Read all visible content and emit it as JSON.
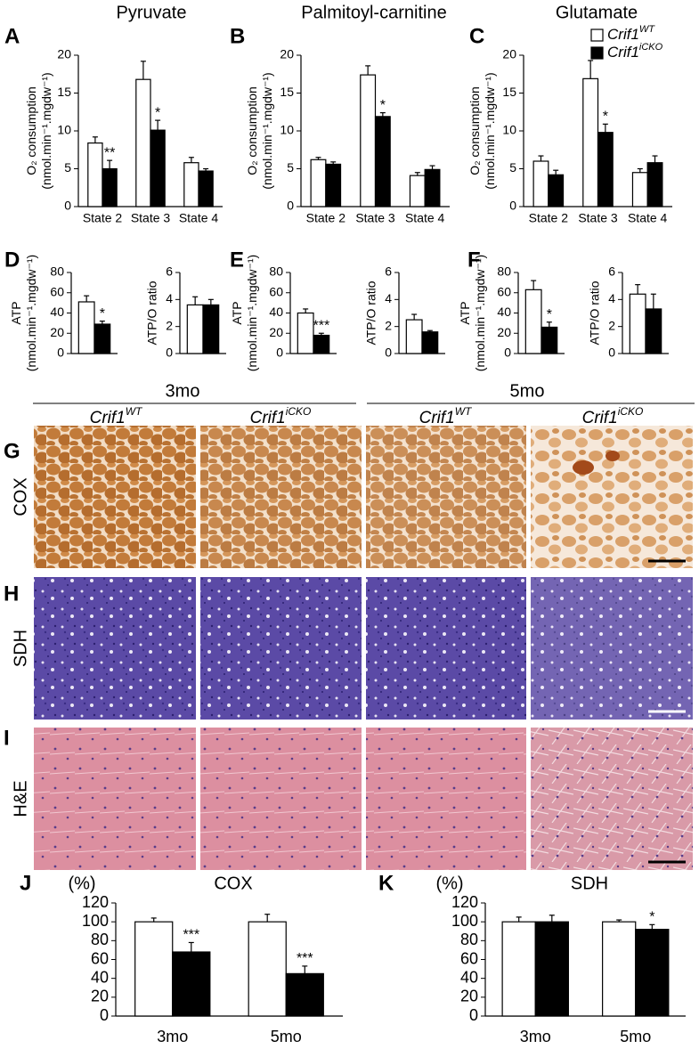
{
  "chart_data": [
    {
      "type": "bar",
      "panel": "A",
      "title": "Pyruvate",
      "ylabel": [
        "O₂ consumption",
        "(nmol.min⁻¹.mgdw⁻¹)"
      ],
      "categories": [
        "State 2",
        "State 3",
        "State 4"
      ],
      "ylim": [
        0,
        20
      ],
      "yticks": [
        0,
        5,
        10,
        15,
        20
      ],
      "series": [
        {
          "color": "#ffffff",
          "values": [
            8.4,
            16.8,
            5.8
          ],
          "errors": [
            0.8,
            2.4,
            0.7
          ]
        },
        {
          "color": "#000000",
          "values": [
            5.0,
            10.1,
            4.7
          ],
          "errors": [
            1.1,
            1.3,
            0.3
          ],
          "significance": [
            "**",
            "*",
            null
          ]
        }
      ]
    },
    {
      "type": "bar",
      "panel": "B",
      "title": "Palmitoyl-carnitine",
      "ylabel": [
        "O₂ consumption",
        "(nmol.min⁻¹.mgdw⁻¹)"
      ],
      "categories": [
        "State 2",
        "State 3",
        "State 4"
      ],
      "ylim": [
        0,
        20
      ],
      "yticks": [
        0,
        5,
        10,
        15,
        20
      ],
      "series": [
        {
          "color": "#ffffff",
          "values": [
            6.2,
            17.4,
            4.1
          ],
          "errors": [
            0.3,
            1.2,
            0.4
          ]
        },
        {
          "color": "#000000",
          "values": [
            5.6,
            11.9,
            4.9
          ],
          "errors": [
            0.3,
            0.5,
            0.5
          ],
          "significance": [
            null,
            "*",
            null
          ]
        }
      ]
    },
    {
      "type": "bar",
      "panel": "C",
      "title": "Glutamate",
      "ylabel": [
        "O₂ consumption",
        "(nmol.min⁻¹.mgdw⁻¹)"
      ],
      "categories": [
        "State 2",
        "State 3",
        "State 4"
      ],
      "ylim": [
        0,
        20
      ],
      "yticks": [
        0,
        5,
        10,
        15,
        20
      ],
      "series": [
        {
          "name": "Crif1",
          "name_sup": "WT",
          "color": "#ffffff",
          "values": [
            6.0,
            16.9,
            4.5
          ],
          "errors": [
            0.7,
            2.4,
            0.5
          ]
        },
        {
          "name": "Crif1",
          "name_sup": "iCKO",
          "color": "#000000",
          "values": [
            4.2,
            9.8,
            5.8
          ],
          "errors": [
            0.6,
            1.1,
            0.9
          ],
          "significance": [
            null,
            "*",
            null
          ]
        }
      ]
    },
    {
      "type": "bar",
      "panel": "D",
      "ylabel": [
        "ATP",
        "(nmol.min⁻¹.mgdw⁻¹)"
      ],
      "categories": [
        null
      ],
      "ylim": [
        0,
        80
      ],
      "yticks": [
        0,
        20,
        40,
        60,
        80
      ],
      "series": [
        {
          "color": "#ffffff",
          "values": [
            51
          ],
          "errors": [
            6
          ]
        },
        {
          "color": "#000000",
          "values": [
            29
          ],
          "errors": [
            3
          ],
          "significance": [
            "*"
          ]
        }
      ]
    },
    {
      "type": "bar",
      "ylabel": [
        "ATP/O ratio"
      ],
      "categories": [
        null
      ],
      "ylim": [
        0,
        6
      ],
      "yticks": [
        0,
        2,
        4,
        6
      ],
      "series": [
        {
          "color": "#ffffff",
          "values": [
            3.6
          ],
          "errors": [
            0.6
          ]
        },
        {
          "color": "#000000",
          "values": [
            3.6
          ],
          "errors": [
            0.4
          ]
        }
      ]
    },
    {
      "type": "bar",
      "panel": "E",
      "ylabel": [
        "ATP",
        "(nmol.min⁻¹.mgdw⁻¹)"
      ],
      "categories": [
        null
      ],
      "ylim": [
        0,
        80
      ],
      "yticks": [
        0,
        20,
        40,
        60,
        80
      ],
      "series": [
        {
          "color": "#ffffff",
          "values": [
            40
          ],
          "errors": [
            4
          ]
        },
        {
          "color": "#000000",
          "values": [
            18
          ],
          "errors": [
            2
          ],
          "significance": [
            "***"
          ]
        }
      ]
    },
    {
      "type": "bar",
      "ylabel": [
        "ATP/O ratio"
      ],
      "categories": [
        null
      ],
      "ylim": [
        0,
        6
      ],
      "yticks": [
        0,
        2,
        4,
        6
      ],
      "series": [
        {
          "color": "#ffffff",
          "values": [
            2.5
          ],
          "errors": [
            0.4
          ]
        },
        {
          "color": "#000000",
          "values": [
            1.6
          ],
          "errors": [
            0.1
          ]
        }
      ]
    },
    {
      "type": "bar",
      "panel": "F",
      "ylabel": [
        "ATP",
        "(nmol.min⁻¹.mgdw⁻¹)"
      ],
      "categories": [
        null
      ],
      "ylim": [
        0,
        80
      ],
      "yticks": [
        0,
        20,
        40,
        60,
        80
      ],
      "series": [
        {
          "color": "#ffffff",
          "values": [
            63
          ],
          "errors": [
            9
          ]
        },
        {
          "color": "#000000",
          "values": [
            26
          ],
          "errors": [
            5
          ],
          "significance": [
            "*"
          ]
        }
      ]
    },
    {
      "type": "bar",
      "ylabel": [
        "ATP/O ratio"
      ],
      "categories": [
        null
      ],
      "ylim": [
        0,
        6
      ],
      "yticks": [
        0,
        2,
        4,
        6
      ],
      "series": [
        {
          "color": "#ffffff",
          "values": [
            4.4
          ],
          "errors": [
            0.7
          ]
        },
        {
          "color": "#000000",
          "values": [
            3.3
          ],
          "errors": [
            1.1
          ]
        }
      ]
    },
    {
      "type": "bar",
      "panel": "J",
      "title": "COX",
      "ylabel": "(%)",
      "categories": [
        "3mo",
        "5mo"
      ],
      "ylim": [
        0,
        120
      ],
      "yticks": [
        0,
        20,
        40,
        60,
        80,
        100,
        120
      ],
      "series": [
        {
          "color": "#ffffff",
          "values": [
            100,
            100
          ],
          "errors": [
            4,
            8
          ]
        },
        {
          "color": "#000000",
          "values": [
            68,
            45
          ],
          "errors": [
            10,
            8
          ],
          "significance": [
            "***",
            "***"
          ]
        }
      ]
    },
    {
      "type": "bar",
      "panel": "K",
      "title": "SDH",
      "ylabel": "(%)",
      "categories": [
        "3mo",
        "5mo"
      ],
      "ylim": [
        0,
        120
      ],
      "yticks": [
        0,
        20,
        40,
        60,
        80,
        100,
        120
      ],
      "series": [
        {
          "color": "#ffffff",
          "values": [
            100,
            100
          ],
          "errors": [
            5,
            2
          ]
        },
        {
          "color": "#000000",
          "values": [
            100,
            92
          ],
          "errors": [
            7,
            5
          ],
          "significance": [
            null,
            "*"
          ]
        }
      ]
    }
  ],
  "histology": {
    "ages": [
      "3mo",
      "5mo"
    ],
    "genotypes": [
      {
        "gene": "Crif1",
        "sup": "WT"
      },
      {
        "gene": "Crif1",
        "sup": "iCKO"
      },
      {
        "gene": "Crif1",
        "sup": "WT"
      },
      {
        "gene": "Crif1",
        "sup": "iCKO"
      }
    ],
    "rows": [
      {
        "panel": "G",
        "stain": "COX"
      },
      {
        "panel": "H",
        "stain": "SDH"
      },
      {
        "panel": "I",
        "stain": "H&E"
      }
    ]
  }
}
